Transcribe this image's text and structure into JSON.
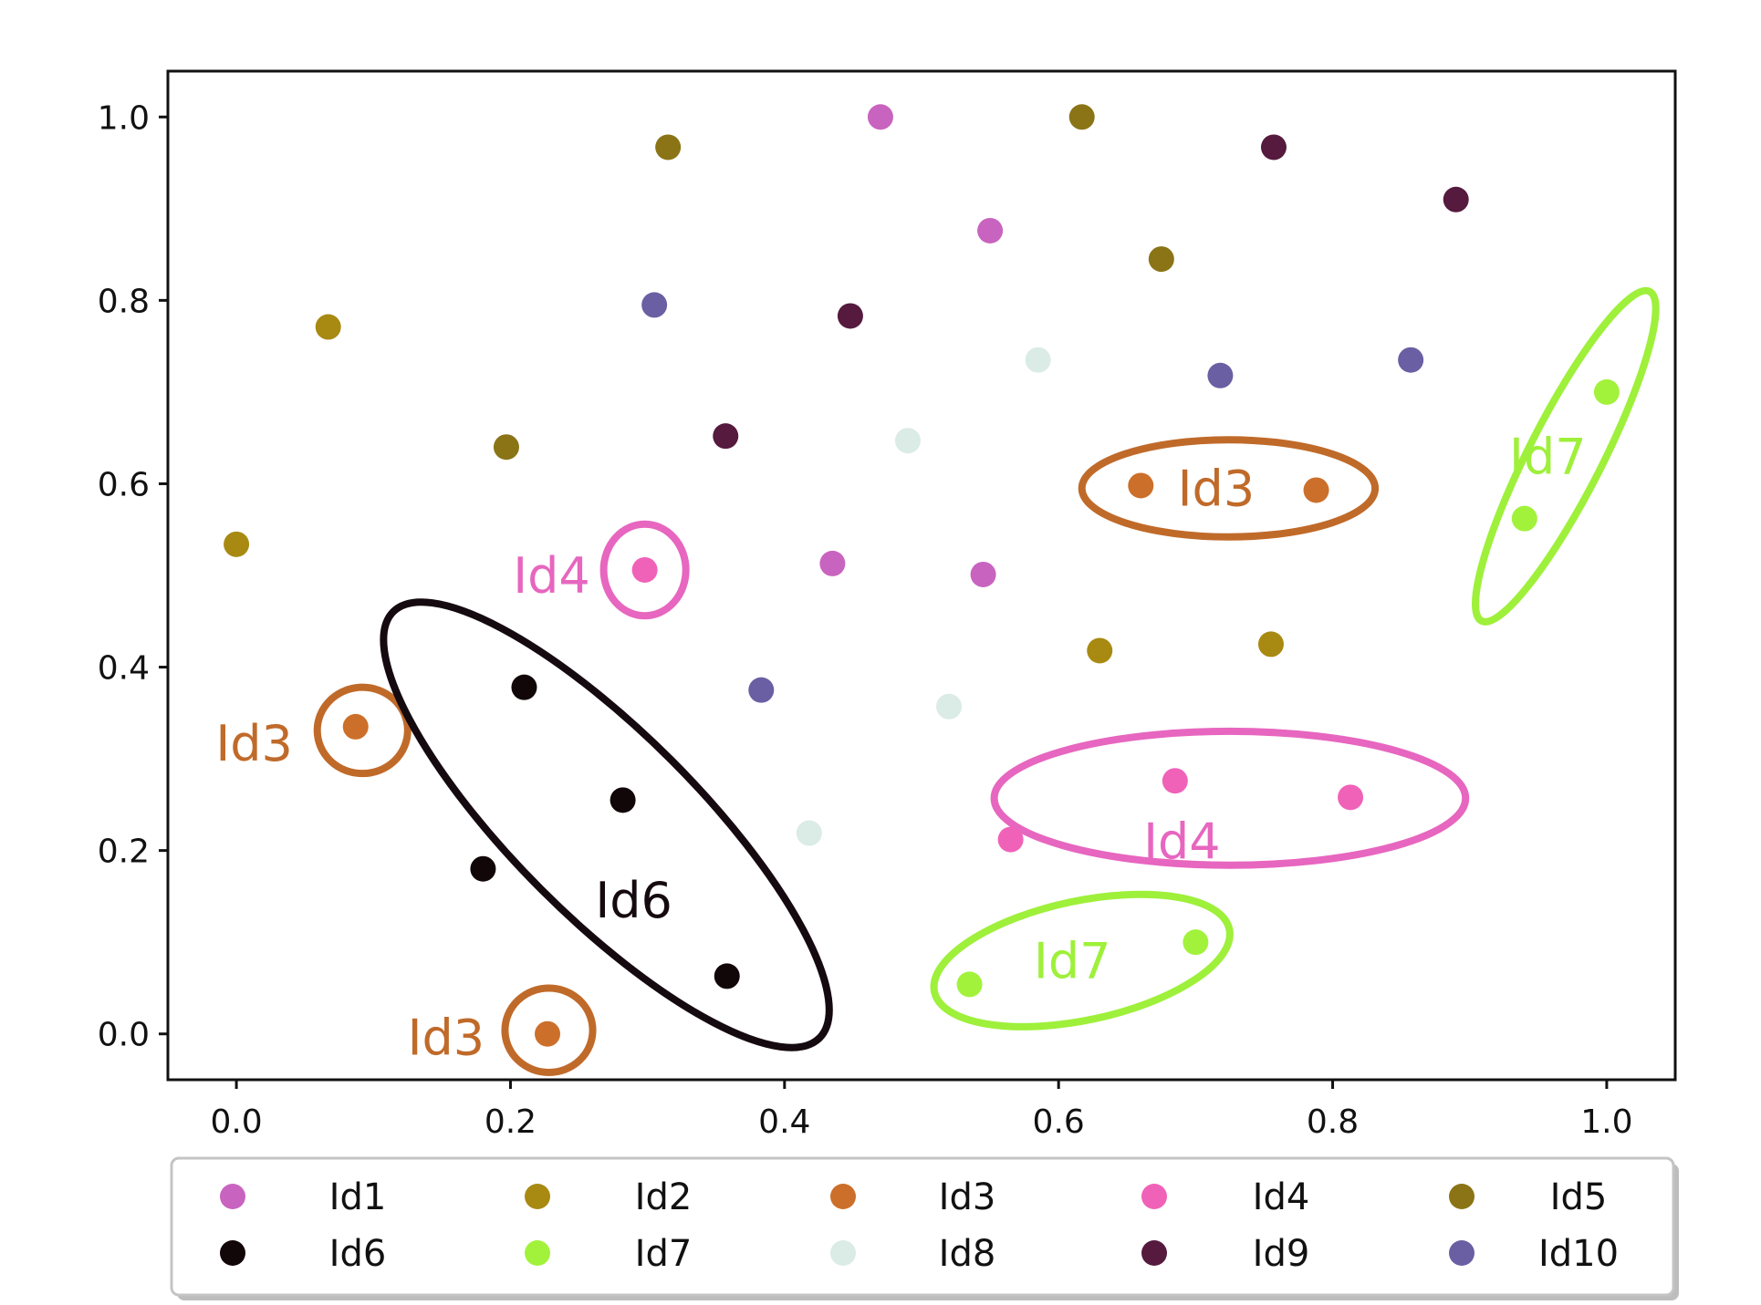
{
  "chart_data": {
    "type": "scatter",
    "title": "",
    "xlabel": "",
    "ylabel": "",
    "xlim": [
      -0.05,
      1.05
    ],
    "ylim": [
      -0.05,
      1.05
    ],
    "x_ticks": [
      "0.0",
      "0.2",
      "0.4",
      "0.6",
      "0.8",
      "1.0"
    ],
    "y_ticks": [
      "0.0",
      "0.2",
      "0.4",
      "0.6",
      "0.8",
      "1.0"
    ],
    "grid": false,
    "legend_position": "bottom",
    "series": [
      {
        "name": "Id1",
        "color": "#c864bf",
        "points": [
          [
            0.47,
            1.0
          ],
          [
            0.55,
            0.876
          ],
          [
            0.435,
            0.513
          ],
          [
            0.545,
            0.501
          ]
        ]
      },
      {
        "name": "Id2",
        "color": "#a88a12",
        "points": [
          [
            0.0,
            0.534
          ],
          [
            0.067,
            0.771
          ],
          [
            0.63,
            0.418
          ],
          [
            0.755,
            0.425
          ]
        ]
      },
      {
        "name": "Id3",
        "color": "#cc6f2a",
        "points": [
          [
            0.66,
            0.598
          ],
          [
            0.788,
            0.593
          ],
          [
            0.087,
            0.335
          ],
          [
            0.227,
            0.0
          ]
        ]
      },
      {
        "name": "Id4",
        "color": "#f062b8",
        "points": [
          [
            0.298,
            0.506
          ],
          [
            0.565,
            0.212
          ],
          [
            0.685,
            0.276
          ],
          [
            0.813,
            0.258
          ]
        ]
      },
      {
        "name": "Id5",
        "color": "#8a7416",
        "points": [
          [
            0.315,
            0.967
          ],
          [
            0.617,
            1.0
          ],
          [
            0.675,
            0.845
          ],
          [
            0.197,
            0.64
          ]
        ]
      },
      {
        "name": "Id6",
        "color": "#110608",
        "points": [
          [
            0.21,
            0.378
          ],
          [
            0.282,
            0.255
          ],
          [
            0.18,
            0.18
          ],
          [
            0.358,
            0.063
          ]
        ]
      },
      {
        "name": "Id7",
        "color": "#a2f23c",
        "points": [
          [
            0.7,
            0.1
          ],
          [
            0.535,
            0.054
          ],
          [
            0.94,
            0.562
          ],
          [
            1.0,
            0.7
          ]
        ]
      },
      {
        "name": "Id8",
        "color": "#dbebe6",
        "points": [
          [
            0.585,
            0.735
          ],
          [
            0.49,
            0.647
          ],
          [
            0.52,
            0.357
          ],
          [
            0.418,
            0.219
          ]
        ]
      },
      {
        "name": "Id9",
        "color": "#551a3e",
        "points": [
          [
            0.757,
            0.967
          ],
          [
            0.89,
            0.91
          ],
          [
            0.448,
            0.783
          ],
          [
            0.357,
            0.652
          ]
        ]
      },
      {
        "name": "Id10",
        "color": "#6b5fa3",
        "points": [
          [
            0.305,
            0.795
          ],
          [
            0.718,
            0.718
          ],
          [
            0.857,
            0.735
          ],
          [
            0.383,
            0.375
          ]
        ]
      }
    ],
    "annotations": [
      {
        "label": "Id3",
        "color": "#c06a2a",
        "center": [
          0.724,
          0.595
        ],
        "radii": [
          0.107,
          0.053
        ],
        "angle": 0,
        "text_at": [
          0.715,
          0.595
        ]
      },
      {
        "label": "Id7",
        "color": "#9ef03a",
        "center": [
          0.97,
          0.63
        ],
        "radii": [
          0.135,
          0.04
        ],
        "angle": -63,
        "text_at": [
          0.957,
          0.63
        ]
      },
      {
        "label": "Id4",
        "color": "#e766bf",
        "center": [
          0.298,
          0.506
        ],
        "radii": [
          0.03,
          0.05
        ],
        "angle": 0,
        "text_at": [
          0.23,
          0.5
        ]
      },
      {
        "label": "Id3",
        "color": "#c06a2a",
        "center": [
          0.092,
          0.331
        ],
        "radii": [
          0.033,
          0.047
        ],
        "angle": 0,
        "text_at": [
          0.013,
          0.317
        ]
      },
      {
        "label": "Id6",
        "color": "#150a0f",
        "center": [
          0.27,
          0.228
        ],
        "radii": [
          0.22,
          0.1
        ],
        "angle": 45,
        "text_at": [
          0.29,
          0.146
        ]
      },
      {
        "label": "Id4",
        "color": "#e766bf",
        "center": [
          0.725,
          0.257
        ],
        "radii": [
          0.172,
          0.073
        ],
        "angle": 0,
        "text_at": [
          0.69,
          0.21
        ]
      },
      {
        "label": "Id3",
        "color": "#c06a2a",
        "center": [
          0.228,
          0.004
        ],
        "radii": [
          0.032,
          0.046
        ],
        "angle": 0,
        "text_at": [
          0.153,
          -0.004
        ]
      },
      {
        "label": "Id7",
        "color": "#9ef03a",
        "center": [
          0.617,
          0.08
        ],
        "radii": [
          0.11,
          0.065
        ],
        "angle": -12,
        "text_at": [
          0.61,
          0.08
        ]
      }
    ]
  }
}
